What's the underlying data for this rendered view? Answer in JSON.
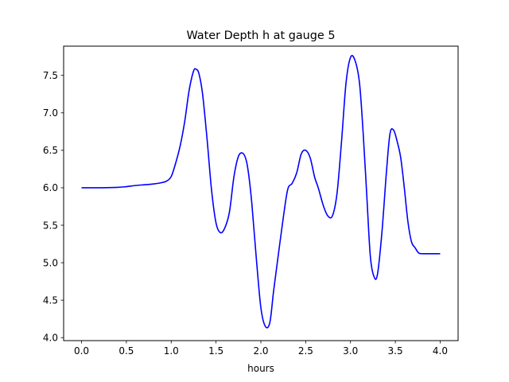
{
  "chart_data": {
    "type": "line",
    "title": "Water Depth h at gauge 5",
    "xlabel": "hours",
    "ylabel": "",
    "xlim": [
      -0.2,
      4.2
    ],
    "ylim": [
      3.96,
      7.89
    ],
    "xticks": [
      0.0,
      0.5,
      1.0,
      1.5,
      2.0,
      2.5,
      3.0,
      3.5,
      4.0
    ],
    "xtick_labels": [
      "0.0",
      "0.5",
      "1.0",
      "1.5",
      "2.0",
      "2.5",
      "3.0",
      "3.5",
      "4.0"
    ],
    "yticks": [
      4.0,
      4.5,
      5.0,
      5.5,
      6.0,
      6.5,
      7.0,
      7.5
    ],
    "ytick_labels": [
      "4.0",
      "4.5",
      "5.0",
      "5.5",
      "6.0",
      "6.5",
      "7.0",
      "7.5"
    ],
    "grid": false,
    "legend": "none",
    "series": [
      {
        "color": "#0000ff",
        "x": [
          0.0,
          0.2,
          0.4,
          0.5,
          0.6,
          0.7,
          0.8,
          0.9,
          0.95,
          1.0,
          1.05,
          1.1,
          1.15,
          1.2,
          1.25,
          1.28,
          1.31,
          1.35,
          1.4,
          1.45,
          1.5,
          1.55,
          1.6,
          1.65,
          1.7,
          1.75,
          1.8,
          1.84,
          1.87,
          1.9,
          1.95,
          2.0,
          2.05,
          2.1,
          2.14,
          2.18,
          2.25,
          2.3,
          2.35,
          2.4,
          2.45,
          2.5,
          2.55,
          2.6,
          2.64,
          2.7,
          2.75,
          2.8,
          2.85,
          2.9,
          2.95,
          3.0,
          3.05,
          3.1,
          3.14,
          3.18,
          3.22,
          3.26,
          3.3,
          3.35,
          3.4,
          3.44,
          3.48,
          3.52,
          3.56,
          3.6,
          3.64,
          3.68,
          3.72,
          3.76,
          3.8,
          3.84,
          3.88,
          3.92,
          3.96,
          4.0
        ],
        "y": [
          6.0,
          6.0,
          6.005,
          6.015,
          6.03,
          6.04,
          6.05,
          6.07,
          6.09,
          6.15,
          6.33,
          6.56,
          6.88,
          7.3,
          7.56,
          7.58,
          7.52,
          7.25,
          6.65,
          5.97,
          5.53,
          5.4,
          5.47,
          5.68,
          6.15,
          6.42,
          6.46,
          6.35,
          6.12,
          5.78,
          5.05,
          4.4,
          4.15,
          4.2,
          4.6,
          4.97,
          5.6,
          5.98,
          6.06,
          6.2,
          6.45,
          6.5,
          6.4,
          6.14,
          6.0,
          5.75,
          5.62,
          5.63,
          5.93,
          6.62,
          7.4,
          7.74,
          7.7,
          7.4,
          6.75,
          5.93,
          5.1,
          4.82,
          4.84,
          5.4,
          6.2,
          6.72,
          6.77,
          6.62,
          6.4,
          6.0,
          5.55,
          5.28,
          5.2,
          5.13,
          5.12,
          5.12,
          5.12,
          5.12,
          5.12,
          5.12
        ]
      }
    ]
  }
}
